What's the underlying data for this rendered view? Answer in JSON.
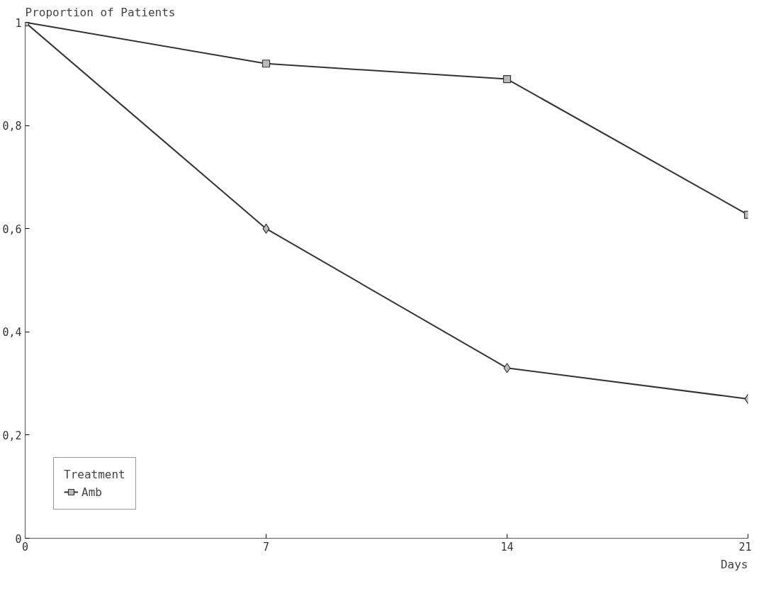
{
  "chart_data": {
    "type": "line",
    "ylabel": "Proportion of Patients",
    "xlabel": "Days",
    "legend_title": "Treatment",
    "legend": "bottom left",
    "grid": false,
    "x": [
      0,
      7,
      14,
      21
    ],
    "xlim": [
      0,
      21
    ],
    "xticks": [
      0,
      7,
      14,
      21
    ],
    "ylim": [
      0,
      1
    ],
    "yticks": [
      0,
      {
        "value": 0.2,
        "label": "0,2"
      },
      {
        "value": 0.4,
        "label": "0,4"
      },
      {
        "value": 0.6,
        "label": "0,6"
      },
      {
        "value": 0.8,
        "label": "0,8"
      },
      1
    ],
    "series": [
      {
        "color": "#333333",
        "marker": "diamond",
        "values": [
          1,
          0.6,
          0.33,
          0.27
        ]
      },
      {
        "name": "Amb",
        "color": "#333333",
        "marker": "square",
        "values": [
          1,
          0.92,
          0.89,
          0.627
        ]
      }
    ]
  }
}
